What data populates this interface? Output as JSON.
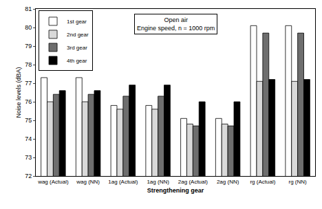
{
  "chart_data": {
    "type": "bar",
    "annotations": [
      "Open air",
      "Engine speed, n = 1000 rpm"
    ],
    "x_label": "Strengthening gear",
    "y_label": "Noise levels (dBA)",
    "categories": [
      "wag (Actual)",
      "wag (NN)",
      "1ag (Actual)",
      "1ag (NN)",
      "2ag (Actual)",
      "2ag (NN)",
      "rg (Actual)",
      "rg (NN)"
    ],
    "series": [
      {
        "name": "1st gear",
        "color": "#ffffff",
        "values": [
          77.3,
          77.3,
          75.8,
          75.8,
          75.1,
          75.1,
          80.1,
          80.1
        ]
      },
      {
        "name": "2nd gear",
        "color": "#d9d9d9",
        "values": [
          76.0,
          76.0,
          75.6,
          75.6,
          74.8,
          74.8,
          77.1,
          77.1
        ]
      },
      {
        "name": "3rd gear",
        "color": "#6e6e6e",
        "values": [
          76.4,
          76.4,
          76.3,
          76.3,
          74.7,
          74.7,
          79.7,
          79.7
        ]
      },
      {
        "name": "4th gear",
        "color": "#000000",
        "values": [
          76.6,
          76.6,
          76.9,
          76.9,
          76.0,
          76.0,
          77.2,
          77.2
        ]
      }
    ],
    "ylim": [
      72,
      81
    ],
    "yticks": [
      72,
      73,
      74,
      75,
      76,
      77,
      78,
      79,
      80,
      81
    ],
    "grid": false,
    "legend": "top-left"
  }
}
